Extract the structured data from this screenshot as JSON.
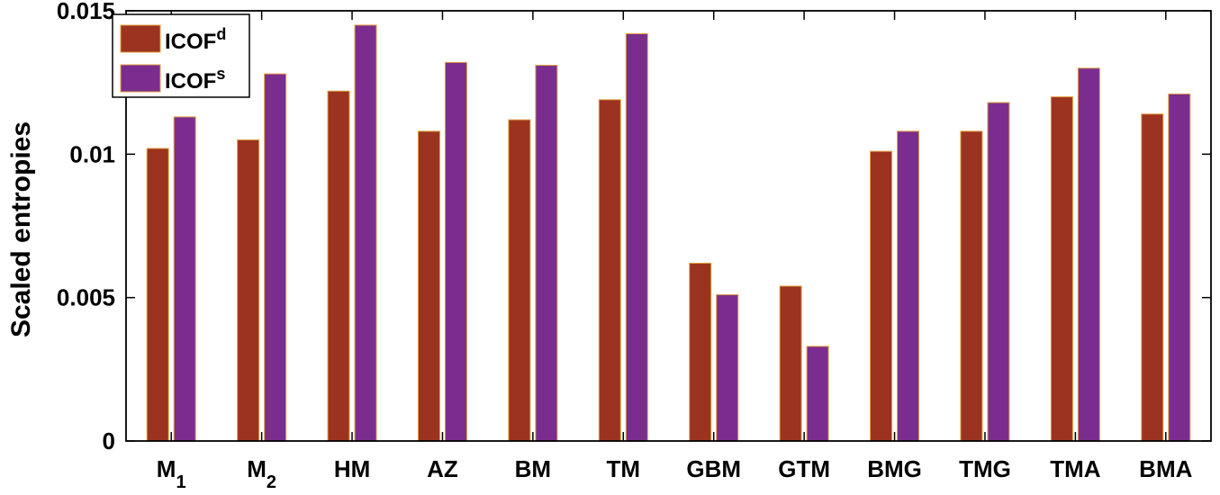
{
  "chart_data": {
    "type": "bar",
    "ylabel": "Scaled entropies",
    "xlabel": "",
    "ylim": [
      0,
      0.015
    ],
    "yticks": [
      {
        "value": 0,
        "label": "0"
      },
      {
        "value": 0.005,
        "label": "0.005"
      },
      {
        "value": 0.01,
        "label": "0.01"
      },
      {
        "value": 0.015,
        "label": "0.015"
      }
    ],
    "categories": [
      {
        "base": "M",
        "sub": "1"
      },
      {
        "base": "M",
        "sub": "2"
      },
      {
        "base": "HM",
        "sub": ""
      },
      {
        "base": "AZ",
        "sub": ""
      },
      {
        "base": "BM",
        "sub": ""
      },
      {
        "base": "TM",
        "sub": ""
      },
      {
        "base": "GBM",
        "sub": ""
      },
      {
        "base": "GTM",
        "sub": ""
      },
      {
        "base": "BMG",
        "sub": ""
      },
      {
        "base": "TMG",
        "sub": ""
      },
      {
        "base": "TMA",
        "sub": ""
      },
      {
        "base": "BMA",
        "sub": ""
      }
    ],
    "series": [
      {
        "name": "ICOF",
        "sup": "d",
        "color": "#9b3320",
        "values": [
          0.0102,
          0.0105,
          0.0122,
          0.0108,
          0.0112,
          0.0119,
          0.0062,
          0.0054,
          0.0101,
          0.0108,
          0.012,
          0.0114
        ]
      },
      {
        "name": "ICOF",
        "sup": "s",
        "color": "#7a2d8f",
        "values": [
          0.0113,
          0.0128,
          0.0145,
          0.0132,
          0.0131,
          0.0142,
          0.0051,
          0.0033,
          0.0108,
          0.0118,
          0.013,
          0.0121
        ]
      }
    ],
    "grid": false,
    "legend_position": "top-left",
    "bar_edge_color": "#e0a040"
  }
}
